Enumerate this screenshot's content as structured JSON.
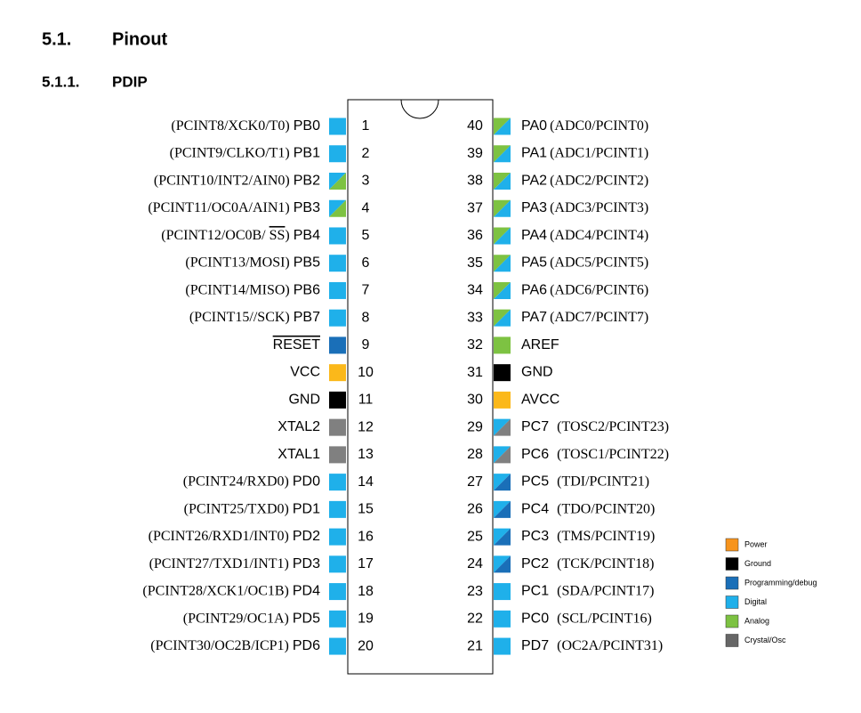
{
  "header": {
    "section_number": "5.1.",
    "section_title": "Pinout",
    "subsection_number": "5.1.1.",
    "subsection_title": "PDIP"
  },
  "left_pins": [
    {
      "number": "1",
      "name": "PB0",
      "alt": "(PCINT8/XCK0/T0)",
      "color": [
        "#1fb0ea"
      ]
    },
    {
      "number": "2",
      "name": "PB1",
      "alt": "(PCINT9/CLKO/T1)",
      "color": [
        "#1fb0ea"
      ]
    },
    {
      "number": "3",
      "name": "PB2",
      "alt": "(PCINT10/INT2/AIN0)",
      "color": [
        "#1fb0ea",
        "#7dc242"
      ]
    },
    {
      "number": "4",
      "name": "PB3",
      "alt": "(PCINT11/OC0A/AIN1)",
      "color": [
        "#1fb0ea",
        "#7dc242"
      ]
    },
    {
      "number": "5",
      "name": "PB4",
      "alt": "(PCINT12/OC0B/",
      "alt_over": "SS",
      "alt_end": ")",
      "color": [
        "#1fb0ea"
      ]
    },
    {
      "number": "6",
      "name": "PB5",
      "alt": "(PCINT13/MOSI)",
      "color": [
        "#1fb0ea"
      ]
    },
    {
      "number": "7",
      "name": "PB6",
      "alt": "(PCINT14/MISO)",
      "color": [
        "#1fb0ea"
      ]
    },
    {
      "number": "8",
      "name": "PB7",
      "alt": "(PCINT15//SCK)",
      "color": [
        "#1fb0ea"
      ]
    },
    {
      "number": "9",
      "name": "RESET",
      "name_overline": true,
      "color": [
        "#1a6fb8"
      ]
    },
    {
      "number": "10",
      "name": "VCC",
      "color": [
        "#fbb81a"
      ]
    },
    {
      "number": "11",
      "name": "GND",
      "color": [
        "#000000"
      ]
    },
    {
      "number": "12",
      "name": "XTAL2",
      "color": [
        "#808080"
      ]
    },
    {
      "number": "13",
      "name": "XTAL1",
      "color": [
        "#808080"
      ]
    },
    {
      "number": "14",
      "name": "PD0",
      "alt": "(PCINT24/RXD0)",
      "color": [
        "#1fb0ea"
      ]
    },
    {
      "number": "15",
      "name": "PD1",
      "alt": "(PCINT25/TXD0)",
      "color": [
        "#1fb0ea"
      ]
    },
    {
      "number": "16",
      "name": "PD2",
      "alt": "(PCINT26/RXD1/INT0)",
      "color": [
        "#1fb0ea"
      ]
    },
    {
      "number": "17",
      "name": "PD3",
      "alt": "(PCINT27/TXD1/INT1)",
      "color": [
        "#1fb0ea"
      ]
    },
    {
      "number": "18",
      "name": "PD4",
      "alt": "(PCINT28/XCK1/OC1B)",
      "color": [
        "#1fb0ea"
      ]
    },
    {
      "number": "19",
      "name": "PD5",
      "alt": "(PCINT29/OC1A)",
      "color": [
        "#1fb0ea"
      ]
    },
    {
      "number": "20",
      "name": "PD6",
      "alt": "(PCINT30/OC2B/ICP1)",
      "color": [
        "#1fb0ea"
      ]
    }
  ],
  "right_pins": [
    {
      "number": "40",
      "name": "PA0",
      "alt": "(ADC0/PCINT0)",
      "color": [
        "#7dc242",
        "#1fb0ea"
      ]
    },
    {
      "number": "39",
      "name": "PA1",
      "alt": "(ADC1/PCINT1)",
      "color": [
        "#7dc242",
        "#1fb0ea"
      ]
    },
    {
      "number": "38",
      "name": "PA2",
      "alt": "(ADC2/PCINT2)",
      "color": [
        "#7dc242",
        "#1fb0ea"
      ]
    },
    {
      "number": "37",
      "name": "PA3",
      "alt": "(ADC3/PCINT3)",
      "color": [
        "#7dc242",
        "#1fb0ea"
      ]
    },
    {
      "number": "36",
      "name": "PA4",
      "alt": "(ADC4/PCINT4)",
      "color": [
        "#7dc242",
        "#1fb0ea"
      ]
    },
    {
      "number": "35",
      "name": "PA5",
      "alt": "(ADC5/PCINT5)",
      "color": [
        "#7dc242",
        "#1fb0ea"
      ]
    },
    {
      "number": "34",
      "name": "PA6",
      "alt": "(ADC6/PCINT6)",
      "color": [
        "#7dc242",
        "#1fb0ea"
      ]
    },
    {
      "number": "33",
      "name": "PA7",
      "alt": "(ADC7/PCINT7)",
      "color": [
        "#7dc242",
        "#1fb0ea"
      ]
    },
    {
      "number": "32",
      "name": "AREF",
      "color": [
        "#7dc242"
      ]
    },
    {
      "number": "31",
      "name": "GND",
      "color": [
        "#000000"
      ]
    },
    {
      "number": "30",
      "name": "AVCC",
      "color": [
        "#fbb81a"
      ]
    },
    {
      "number": "29",
      "name": "PC7",
      "alt": "(TOSC2/PCINT23)",
      "color": [
        "#1fb0ea",
        "#808080"
      ]
    },
    {
      "number": "28",
      "name": "PC6",
      "alt": "(TOSC1/PCINT22)",
      "color": [
        "#1fb0ea",
        "#808080"
      ]
    },
    {
      "number": "27",
      "name": "PC5",
      "alt": "(TDI/PCINT21)",
      "color": [
        "#1fb0ea",
        "#1a6fb8"
      ]
    },
    {
      "number": "26",
      "name": "PC4",
      "alt": "(TDO/PCINT20)",
      "color": [
        "#1fb0ea",
        "#1a6fb8"
      ]
    },
    {
      "number": "25",
      "name": "PC3",
      "alt": "(TMS/PCINT19)",
      "color": [
        "#1fb0ea",
        "#1a6fb8"
      ]
    },
    {
      "number": "24",
      "name": "PC2",
      "alt": "(TCK/PCINT18)",
      "color": [
        "#1fb0ea",
        "#1a6fb8"
      ]
    },
    {
      "number": "23",
      "name": "PC1",
      "alt": "(SDA/PCINT17)",
      "color": [
        "#1fb0ea"
      ]
    },
    {
      "number": "22",
      "name": "PC0",
      "alt": "(SCL/PCINT16)",
      "color": [
        "#1fb0ea"
      ]
    },
    {
      "number": "21",
      "name": "PD7",
      "alt": "(OC2A/PCINT31)",
      "color": [
        "#1fb0ea"
      ]
    }
  ],
  "legend": [
    {
      "label": "Power",
      "color": "#f7941d"
    },
    {
      "label": "Ground",
      "color": "#000000"
    },
    {
      "label": "Programming/debug",
      "color": "#1a6fb8"
    },
    {
      "label": "Digital",
      "color": "#1fb0ea"
    },
    {
      "label": "Analog",
      "color": "#7dc242"
    },
    {
      "label": "Crystal/Osc",
      "color": "#666666"
    }
  ]
}
